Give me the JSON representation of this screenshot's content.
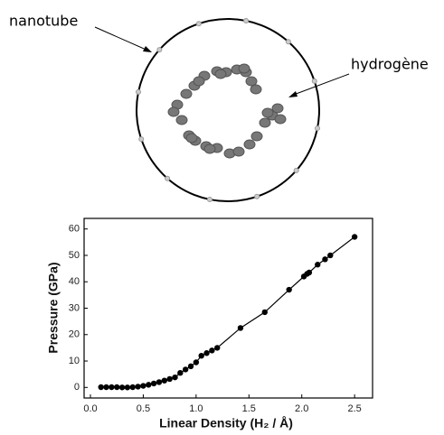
{
  "labels": {
    "tube": "nanotube",
    "hydrogen": "hydrogène"
  },
  "chart_data": {
    "type": "line",
    "x_label": "Linear Density (H₂ / Å)",
    "y_label": "Pressure (GPa)",
    "x": [
      0.1,
      0.15,
      0.2,
      0.25,
      0.3,
      0.35,
      0.4,
      0.45,
      0.5,
      0.55,
      0.6,
      0.65,
      0.7,
      0.75,
      0.8,
      0.85,
      0.9,
      0.95,
      1.0,
      1.05,
      1.1,
      1.15,
      1.2,
      1.42,
      1.65,
      1.88,
      2.02,
      2.05,
      2.07,
      2.15,
      2.22,
      2.27,
      2.5
    ],
    "series": [
      {
        "name": "Pressure",
        "color": "#000000",
        "values": [
          0.1,
          0.1,
          0.1,
          0.1,
          0,
          0,
          0.1,
          0.3,
          0.6,
          1,
          1.5,
          2,
          2.6,
          3.2,
          3.8,
          5.5,
          6.8,
          8,
          9.5,
          12,
          13,
          14,
          15,
          22.5,
          28.5,
          37,
          42,
          43,
          43.5,
          46.5,
          48.5,
          50,
          57
        ]
      }
    ],
    "xlim": [
      -0.06,
      2.67
    ],
    "ylim": [
      -4,
      64
    ],
    "xticks": [
      {
        "value": 0,
        "label": "0.0"
      },
      0.5,
      {
        "value": 1,
        "label": "1.0"
      },
      1.5,
      {
        "value": 2,
        "label": "2.0"
      },
      2.5
    ],
    "yticks": [
      0,
      10,
      20,
      30,
      40,
      50,
      60
    ]
  }
}
